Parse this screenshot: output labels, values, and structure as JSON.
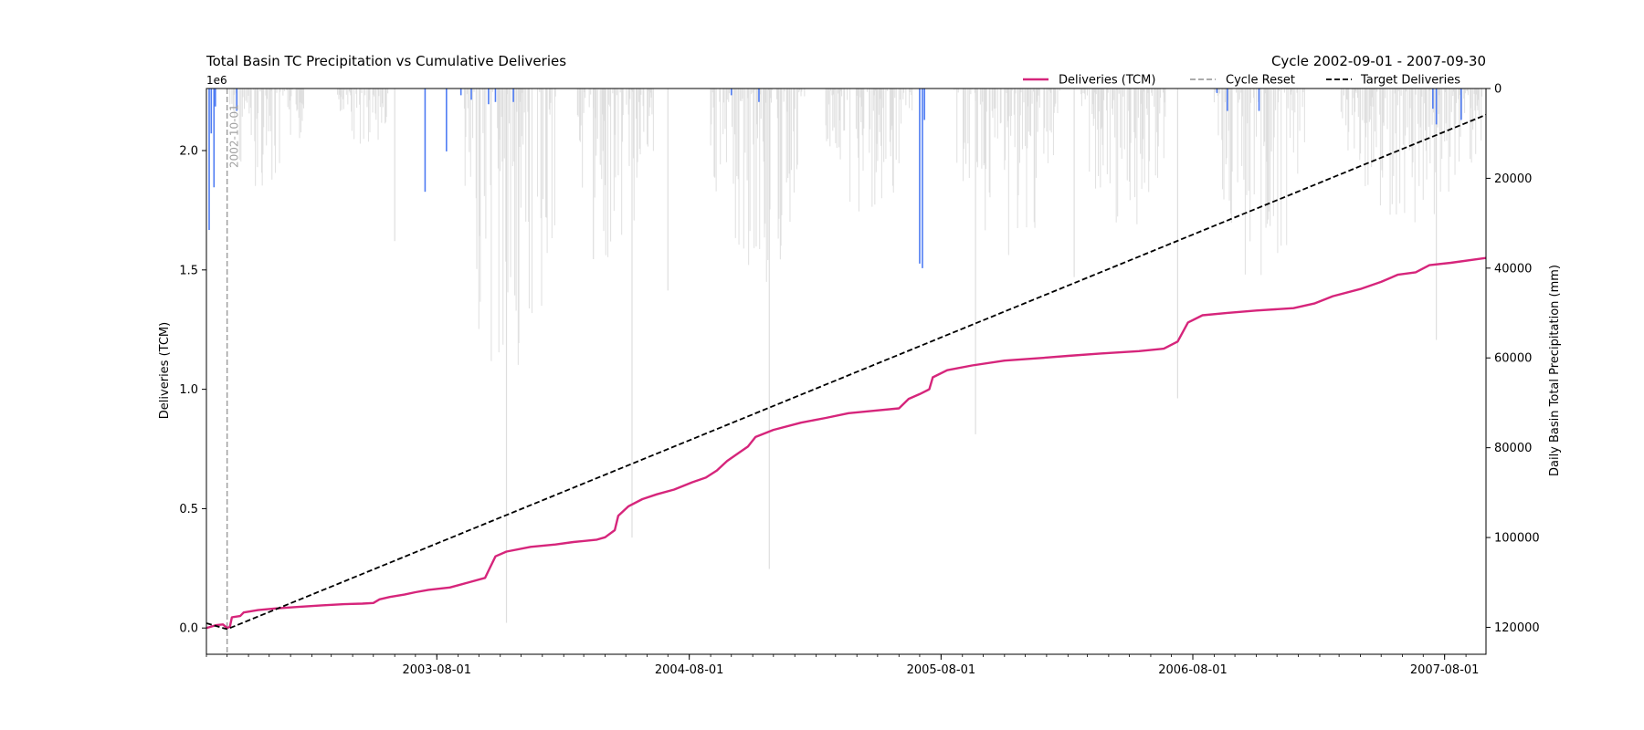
{
  "chart_data": {
    "type": "line",
    "title": "Total Basin TC Precipitation vs Cumulative Deliveries",
    "subtitle": "Cycle 2002-09-01 - 2007-09-30",
    "y_exponent_label": "1e6",
    "ylabel": "Deliveries (TCM)",
    "y2label": "Daily Basin Total Precipitation (mm)",
    "xlim": [
      "2002-09-01",
      "2007-09-30"
    ],
    "ylim": [
      -0.11,
      2.26
    ],
    "y2lim": [
      126000,
      0
    ],
    "y2_inverted": true,
    "yticks": [
      {
        "v": 0.0,
        "label": "0.0"
      },
      {
        "v": 0.5,
        "label": "0.5"
      },
      {
        "v": 1.0,
        "label": "1.0"
      },
      {
        "v": 1.5,
        "label": "1.5"
      },
      {
        "v": 2.0,
        "label": "2.0"
      }
    ],
    "y2ticks": [
      {
        "v": 0,
        "label": "0"
      },
      {
        "v": 20000,
        "label": "20000"
      },
      {
        "v": 40000,
        "label": "40000"
      },
      {
        "v": 60000,
        "label": "60000"
      },
      {
        "v": 80000,
        "label": "80000"
      },
      {
        "v": 100000,
        "label": "100000"
      },
      {
        "v": 120000,
        "label": "120000"
      }
    ],
    "xticks": [
      {
        "date": "2003-08-01",
        "label": "2003-08-01"
      },
      {
        "date": "2004-08-01",
        "label": "2004-08-01"
      },
      {
        "date": "2005-08-01",
        "label": "2005-08-01"
      },
      {
        "date": "2006-08-01",
        "label": "2006-08-01"
      },
      {
        "date": "2007-08-01",
        "label": "2007-08-01"
      }
    ],
    "legend": {
      "placement": "top-right",
      "entries": [
        {
          "label": "Deliveries (TCM)",
          "color": "#d6257b",
          "style": "solid"
        },
        {
          "label": "Cycle Reset",
          "color": "#a0a0a0",
          "style": "dashed"
        },
        {
          "label": "Target Deliveries",
          "color": "#000000",
          "style": "dashed"
        }
      ]
    },
    "cycle_reset": {
      "date": "2002-10-01",
      "label": "2002-10-01",
      "color": "#a0a0a0"
    },
    "series": [
      {
        "name": "Deliveries (TCM)",
        "color": "#d6257b",
        "points": [
          [
            "2002-09-01",
            0.0
          ],
          [
            "2002-09-15",
            0.012
          ],
          [
            "2002-09-25",
            0.015
          ],
          [
            "2002-10-01",
            0.0
          ],
          [
            "2002-10-05",
            0.005
          ],
          [
            "2002-10-08",
            0.045
          ],
          [
            "2002-10-20",
            0.05
          ],
          [
            "2002-10-25",
            0.065
          ],
          [
            "2002-11-15",
            0.075
          ],
          [
            "2002-12-10",
            0.082
          ],
          [
            "2003-01-10",
            0.088
          ],
          [
            "2003-02-15",
            0.095
          ],
          [
            "2003-03-20",
            0.1
          ],
          [
            "2003-04-15",
            0.102
          ],
          [
            "2003-05-01",
            0.105
          ],
          [
            "2003-05-10",
            0.12
          ],
          [
            "2003-05-25",
            0.13
          ],
          [
            "2003-06-15",
            0.14
          ],
          [
            "2003-07-01",
            0.15
          ],
          [
            "2003-07-20",
            0.16
          ],
          [
            "2003-08-20",
            0.17
          ],
          [
            "2003-09-15",
            0.19
          ],
          [
            "2003-10-10",
            0.21
          ],
          [
            "2003-10-15",
            0.24
          ],
          [
            "2003-10-25",
            0.3
          ],
          [
            "2003-11-10",
            0.32
          ],
          [
            "2003-12-15",
            0.34
          ],
          [
            "2004-01-20",
            0.35
          ],
          [
            "2004-02-15",
            0.36
          ],
          [
            "2004-03-20",
            0.37
          ],
          [
            "2004-04-01",
            0.38
          ],
          [
            "2004-04-15",
            0.41
          ],
          [
            "2004-04-20",
            0.47
          ],
          [
            "2004-05-05",
            0.51
          ],
          [
            "2004-05-25",
            0.54
          ],
          [
            "2004-06-15",
            0.56
          ],
          [
            "2004-07-10",
            0.58
          ],
          [
            "2004-08-05",
            0.61
          ],
          [
            "2004-08-25",
            0.63
          ],
          [
            "2004-09-10",
            0.66
          ],
          [
            "2004-09-25",
            0.7
          ],
          [
            "2004-10-10",
            0.73
          ],
          [
            "2004-10-25",
            0.76
          ],
          [
            "2004-11-05",
            0.8
          ],
          [
            "2004-12-01",
            0.83
          ],
          [
            "2005-01-10",
            0.86
          ],
          [
            "2005-02-15",
            0.88
          ],
          [
            "2005-03-20",
            0.9
          ],
          [
            "2005-04-25",
            0.91
          ],
          [
            "2005-06-01",
            0.92
          ],
          [
            "2005-06-15",
            0.96
          ],
          [
            "2005-07-01",
            0.98
          ],
          [
            "2005-07-15",
            1.0
          ],
          [
            "2005-07-20",
            1.05
          ],
          [
            "2005-08-10",
            1.08
          ],
          [
            "2005-09-15",
            1.1
          ],
          [
            "2005-11-01",
            1.12
          ],
          [
            "2005-12-20",
            1.13
          ],
          [
            "2006-02-01",
            1.14
          ],
          [
            "2006-03-20",
            1.15
          ],
          [
            "2006-05-15",
            1.16
          ],
          [
            "2006-06-20",
            1.17
          ],
          [
            "2006-07-10",
            1.2
          ],
          [
            "2006-07-25",
            1.28
          ],
          [
            "2006-08-15",
            1.31
          ],
          [
            "2006-09-20",
            1.32
          ],
          [
            "2006-11-01",
            1.33
          ],
          [
            "2006-12-25",
            1.34
          ],
          [
            "2007-01-25",
            1.36
          ],
          [
            "2007-02-20",
            1.39
          ],
          [
            "2007-04-01",
            1.42
          ],
          [
            "2007-05-01",
            1.45
          ],
          [
            "2007-05-25",
            1.48
          ],
          [
            "2007-06-20",
            1.49
          ],
          [
            "2007-07-10",
            1.52
          ],
          [
            "2007-08-10",
            1.53
          ],
          [
            "2007-09-30",
            1.55
          ]
        ]
      },
      {
        "name": "Target Deliveries",
        "color": "#000000",
        "dashed": true,
        "points": [
          [
            "2002-09-01",
            0.02
          ],
          [
            "2002-10-01",
            -0.005
          ],
          [
            "2007-09-30",
            2.15
          ]
        ]
      }
    ],
    "precip_grey_color": "#d9d9d9",
    "precip_blue_color": "#4f7cf3",
    "precip_clusters": [
      {
        "start": "2002-10-05",
        "end": "2003-01-20",
        "max": 25000
      },
      {
        "start": "2003-03-10",
        "end": "2003-05-25",
        "max": 15000
      },
      {
        "start": "2003-09-10",
        "end": "2004-01-20",
        "max": 75000
      },
      {
        "start": "2004-02-20",
        "end": "2004-06-10",
        "max": 40000
      },
      {
        "start": "2004-09-01",
        "end": "2005-01-15",
        "max": 45000
      },
      {
        "start": "2005-02-15",
        "end": "2005-06-20",
        "max": 30000
      },
      {
        "start": "2005-08-20",
        "end": "2006-01-20",
        "max": 38000
      },
      {
        "start": "2006-02-20",
        "end": "2006-06-25",
        "max": 32000
      },
      {
        "start": "2006-09-01",
        "end": "2007-01-10",
        "max": 45000
      },
      {
        "start": "2007-03-01",
        "end": "2007-09-25",
        "max": 30000
      }
    ],
    "precip_spikes": [
      {
        "date": "2003-11-10",
        "value": 119000
      },
      {
        "date": "2004-05-10",
        "value": 100000
      },
      {
        "date": "2004-11-25",
        "value": 107000
      },
      {
        "date": "2004-07-01",
        "value": 45000
      },
      {
        "date": "2005-09-20",
        "value": 77000
      },
      {
        "date": "2006-07-10",
        "value": 69000
      },
      {
        "date": "2003-06-01",
        "value": 34000
      },
      {
        "date": "2004-03-15",
        "value": 38000
      },
      {
        "date": "2007-07-20",
        "value": 56000
      },
      {
        "date": "2006-02-10",
        "value": 42000
      }
    ],
    "precip_blue": [
      {
        "date": "2002-09-05",
        "value": 31500
      },
      {
        "date": "2002-09-08",
        "value": 10000
      },
      {
        "date": "2002-09-12",
        "value": 22000
      },
      {
        "date": "2002-09-14",
        "value": 4000
      },
      {
        "date": "2002-10-15",
        "value": 5000
      },
      {
        "date": "2003-07-15",
        "value": 23000
      },
      {
        "date": "2003-08-15",
        "value": 14000
      },
      {
        "date": "2003-09-05",
        "value": 1500
      },
      {
        "date": "2003-09-20",
        "value": 2500
      },
      {
        "date": "2003-10-15",
        "value": 3500
      },
      {
        "date": "2003-10-25",
        "value": 3000
      },
      {
        "date": "2003-11-20",
        "value": 3000
      },
      {
        "date": "2004-10-01",
        "value": 1500
      },
      {
        "date": "2004-11-10",
        "value": 3000
      },
      {
        "date": "2005-07-01",
        "value": 39000
      },
      {
        "date": "2005-07-05",
        "value": 40000
      },
      {
        "date": "2005-07-08",
        "value": 7000
      },
      {
        "date": "2006-09-05",
        "value": 1000
      },
      {
        "date": "2006-09-20",
        "value": 5000
      },
      {
        "date": "2006-11-05",
        "value": 5000
      },
      {
        "date": "2007-07-15",
        "value": 4500
      },
      {
        "date": "2007-07-20",
        "value": 8000
      },
      {
        "date": "2007-08-25",
        "value": 7000
      }
    ]
  }
}
